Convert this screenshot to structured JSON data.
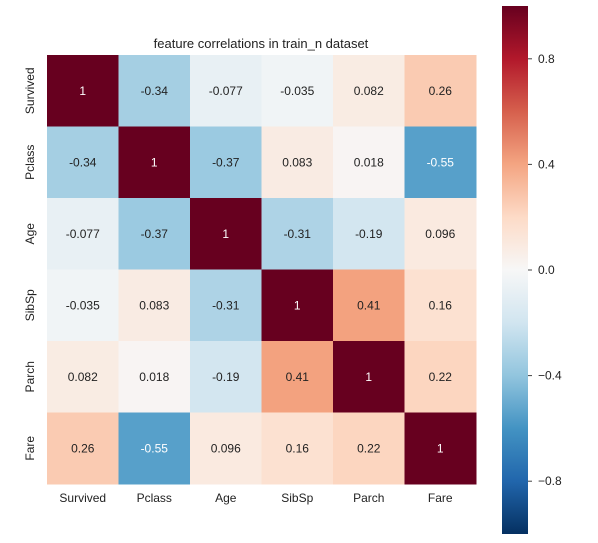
{
  "chart_data": {
    "type": "heatmap",
    "title": "feature correlations in train_n dataset",
    "xlabel": "",
    "ylabel": "",
    "x_labels": [
      "Survived",
      "Pclass",
      "Age",
      "SibSp",
      "Parch",
      "Fare"
    ],
    "y_labels": [
      "Survived",
      "Pclass",
      "Age",
      "SibSp",
      "Parch",
      "Fare"
    ],
    "values": [
      [
        1,
        -0.34,
        -0.077,
        -0.035,
        0.082,
        0.26
      ],
      [
        -0.34,
        1,
        -0.37,
        0.083,
        0.018,
        -0.55
      ],
      [
        -0.077,
        -0.37,
        1,
        -0.31,
        -0.19,
        0.096
      ],
      [
        -0.035,
        0.083,
        -0.31,
        1,
        0.41,
        0.16
      ],
      [
        0.082,
        0.018,
        -0.19,
        0.41,
        1,
        0.22
      ],
      [
        0.26,
        -0.55,
        0.096,
        0.16,
        0.22,
        1
      ]
    ],
    "annotations": [
      [
        "1",
        "-0.34",
        "-0.077",
        "-0.035",
        "0.082",
        "0.26"
      ],
      [
        "-0.34",
        "1",
        "-0.37",
        "0.083",
        "0.018",
        "-0.55"
      ],
      [
        "-0.077",
        "-0.37",
        "1",
        "-0.31",
        "-0.19",
        "0.096"
      ],
      [
        "-0.035",
        "0.083",
        "-0.31",
        "1",
        "0.41",
        "0.16"
      ],
      [
        "0.082",
        "0.018",
        "-0.19",
        "0.41",
        "1",
        "0.22"
      ],
      [
        "0.26",
        "-0.55",
        "0.096",
        "0.16",
        "0.22",
        "1"
      ]
    ],
    "colormap": "RdBu_r",
    "vmin": -1,
    "vmax": 1,
    "colorbar_ticks": [
      0.8,
      0.4,
      0.0,
      -0.4,
      -0.8
    ],
    "colorbar_tick_labels": [
      "0.8",
      "0.4",
      "0.0",
      "−0.4",
      "−0.8"
    ],
    "grid": false
  }
}
